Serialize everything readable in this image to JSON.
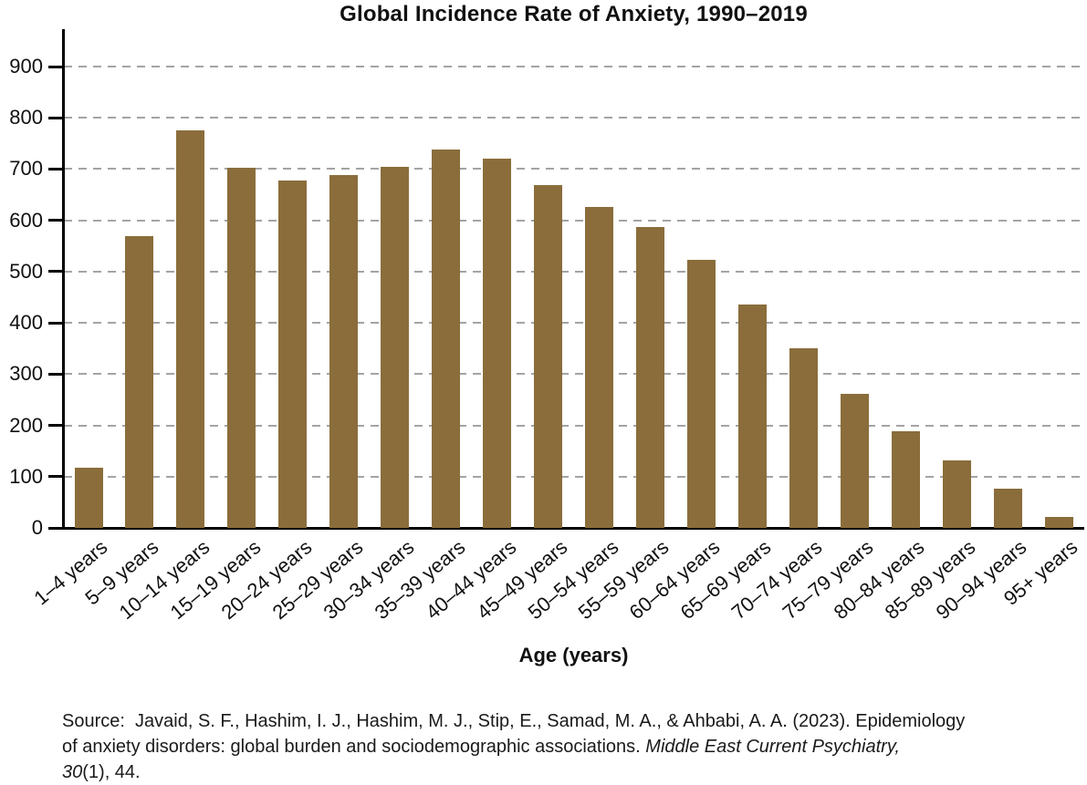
{
  "chart_data": {
    "type": "bar",
    "title": "Global Incidence Rate of Anxiety, 1990–2019",
    "xlabel": "Age (years)",
    "ylabel": "",
    "ylim": [
      0,
      950
    ],
    "yticks": [
      0,
      100,
      200,
      300,
      400,
      500,
      600,
      700,
      800,
      900
    ],
    "grid": "horizontal-dashed",
    "legend": "none",
    "categories": [
      "1–4 years",
      "5–9 years",
      "10–14 years",
      "15–19 years",
      "20–24 years",
      "25–29 years",
      "30–34 years",
      "35–39 years",
      "40–44 years",
      "45–49 years",
      "50–54 years",
      "55–59 years",
      "60–64 years",
      "65–69 years",
      "70–74 years",
      "75–79 years",
      "80–84 years",
      "85–89 years",
      "90–94 years",
      "95+ years"
    ],
    "values": [
      117,
      570,
      775,
      702,
      678,
      688,
      705,
      738,
      720,
      668,
      626,
      587,
      523,
      436,
      350,
      262,
      188,
      132,
      77,
      22
    ],
    "colors": {
      "bar": "#8a6d3b",
      "gridline": "#a4a4a4",
      "axis": "#000000",
      "text": "#111111"
    }
  },
  "source": {
    "line1": "Source:  Javaid, S. F., Hashim, I. J., Hashim, M. J., Stip, E., Samad, M. A., & Ahbabi, A. A. (2023). Epidemiology",
    "line2_regular": "of anxiety disorders: global burden and sociodemographic associations. ",
    "line2_italic": "Middle East Current Psychiatry,",
    "line3_italic": "30",
    "line3_regular": "(1), 44."
  }
}
